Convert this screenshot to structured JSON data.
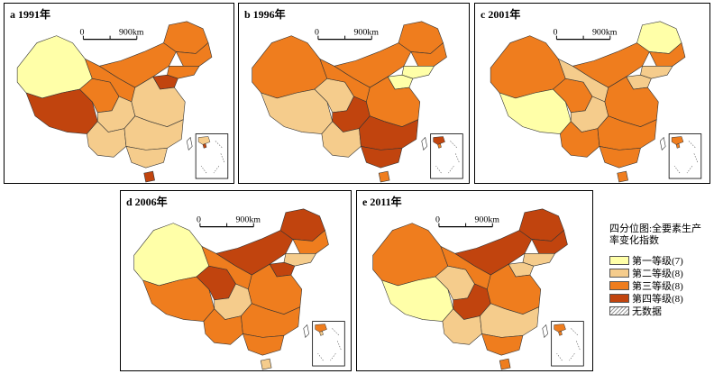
{
  "colors": {
    "q1": "#ffffa8",
    "q2": "#f5cc8c",
    "q3": "#ef7d1e",
    "q4": "#c1440e",
    "nodata": "#ffffff",
    "border": "#333333"
  },
  "maps": [
    {
      "id": "a",
      "title": "a 1991年",
      "scale_zero": "0",
      "scale_label": "900km",
      "regions": {
        "xinjiang": "q1",
        "tibet": "q4",
        "qinghai": "q3",
        "gansu": "q3",
        "inner_mongolia": "q3",
        "heilongjiang": "q3",
        "jilin": "q3",
        "liaoning": "q3",
        "sichuan": "q2",
        "yunnan": "q2",
        "east": "q2",
        "southeast": "q2",
        "guangdong": "q2",
        "hainan": "q4",
        "beijing": "q4"
      }
    },
    {
      "id": "b",
      "title": "b 1996年",
      "scale_zero": "0",
      "scale_label": "900km",
      "regions": {
        "xinjiang": "q3",
        "tibet": "q2",
        "qinghai": "q2",
        "gansu": "q3",
        "inner_mongolia": "q3",
        "heilongjiang": "q3",
        "jilin": "q3",
        "liaoning": "q1",
        "sichuan": "q4",
        "yunnan": "q2",
        "east": "q3",
        "southeast": "q4",
        "guangdong": "q4",
        "hainan": "q3",
        "beijing": "q1"
      }
    },
    {
      "id": "c",
      "title": "c 2001年",
      "scale_zero": "0",
      "scale_label": "900km",
      "regions": {
        "xinjiang": "q3",
        "tibet": "q1",
        "qinghai": "q3",
        "gansu": "q2",
        "inner_mongolia": "q3",
        "heilongjiang": "q1",
        "jilin": "q3",
        "liaoning": "q2",
        "sichuan": "q2",
        "yunnan": "q3",
        "east": "q3",
        "southeast": "q3",
        "guangdong": "q3",
        "hainan": "q3",
        "beijing": "q2"
      }
    },
    {
      "id": "d",
      "title": "d 2006年",
      "scale_zero": "0",
      "scale_label": "900km",
      "regions": {
        "xinjiang": "q1",
        "tibet": "q3",
        "qinghai": "q4",
        "gansu": "q3",
        "inner_mongolia": "q4",
        "heilongjiang": "q4",
        "jilin": "q3",
        "liaoning": "q2",
        "sichuan": "q2",
        "yunnan": "q3",
        "east": "q3",
        "southeast": "q3",
        "guangdong": "q3",
        "hainan": "q2",
        "beijing": "q4"
      }
    },
    {
      "id": "e",
      "title": "e 2011年",
      "scale_zero": "0",
      "scale_label": "900km",
      "regions": {
        "xinjiang": "q3",
        "tibet": "q1",
        "qinghai": "q2",
        "gansu": "q3",
        "inner_mongolia": "q4",
        "heilongjiang": "q4",
        "jilin": "q4",
        "liaoning": "q2",
        "sichuan": "q4",
        "yunnan": "q2",
        "east": "q3",
        "southeast": "q2",
        "guangdong": "q3",
        "hainan": "q3",
        "beijing": "q2"
      }
    }
  ],
  "legend": {
    "title": "四分位图:全要素生产率变化指数",
    "items": [
      {
        "key": "q1",
        "label": "第一等级(7)"
      },
      {
        "key": "q2",
        "label": "第二等级(8)"
      },
      {
        "key": "q3",
        "label": "第三等级(8)"
      },
      {
        "key": "q4",
        "label": "第四等级(8)"
      },
      {
        "key": "nodata",
        "label": "无数据"
      }
    ]
  }
}
